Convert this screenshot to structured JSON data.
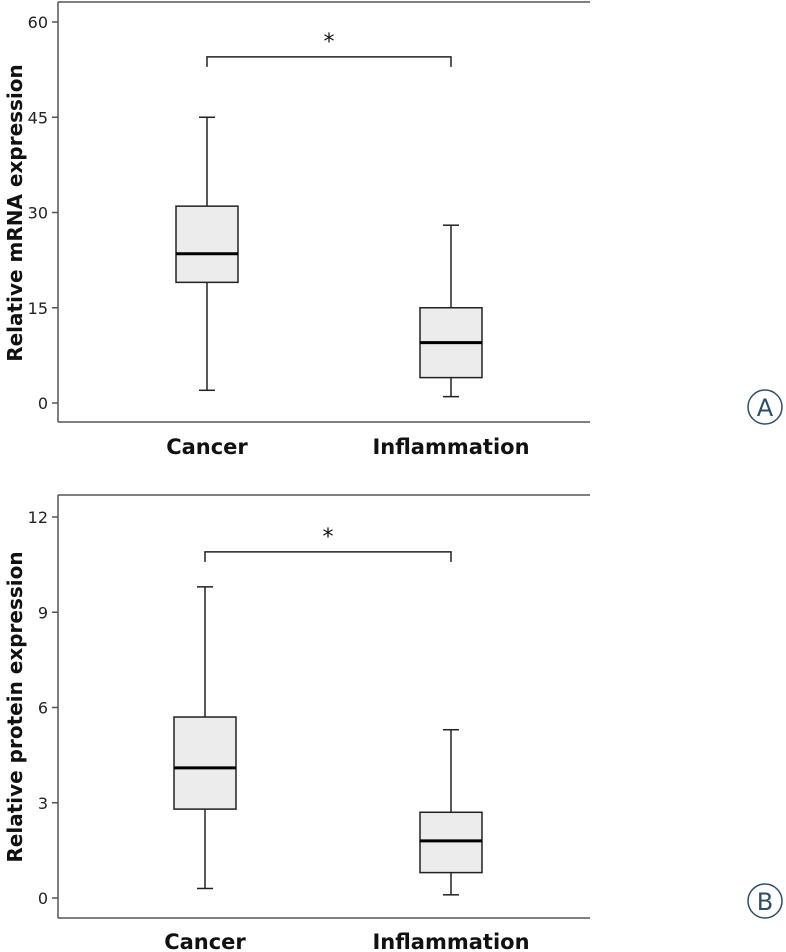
{
  "chart_data": [
    {
      "panel": "A",
      "type": "box",
      "ylabel": "Relative mRNA expression",
      "ylim": [
        0,
        60
      ],
      "yticks": [
        "0",
        "15",
        "30",
        "45",
        "60"
      ],
      "categories": [
        "Cancer",
        "Inflammation"
      ],
      "boxes": [
        {
          "category": "Cancer",
          "min": 2,
          "q1": 19,
          "median": 23.5,
          "q3": 31,
          "max": 45
        },
        {
          "category": "Inflammation",
          "min": 1,
          "q1": 4,
          "median": 9.5,
          "q3": 15,
          "max": 28
        }
      ],
      "significance": {
        "label": "*",
        "level": 54.5
      }
    },
    {
      "panel": "B",
      "type": "box",
      "ylabel": "Relative protein expression",
      "ylim": [
        0,
        12
      ],
      "yticks": [
        "0",
        "3",
        "6",
        "9",
        "12"
      ],
      "categories": [
        "Cancer",
        "Inflammation"
      ],
      "boxes": [
        {
          "category": "Cancer",
          "min": 0.3,
          "q1": 2.8,
          "median": 4.1,
          "q3": 5.7,
          "max": 9.8
        },
        {
          "category": "Inflammation",
          "min": 0.1,
          "q1": 0.8,
          "median": 1.8,
          "q3": 2.7,
          "max": 5.3
        }
      ],
      "significance": {
        "label": "*",
        "level": 10.9
      }
    }
  ],
  "colors": {
    "box_fill": "#ececec",
    "stroke": "#222222",
    "axis": "#555555",
    "panel_letter": "#2e4d6b"
  }
}
